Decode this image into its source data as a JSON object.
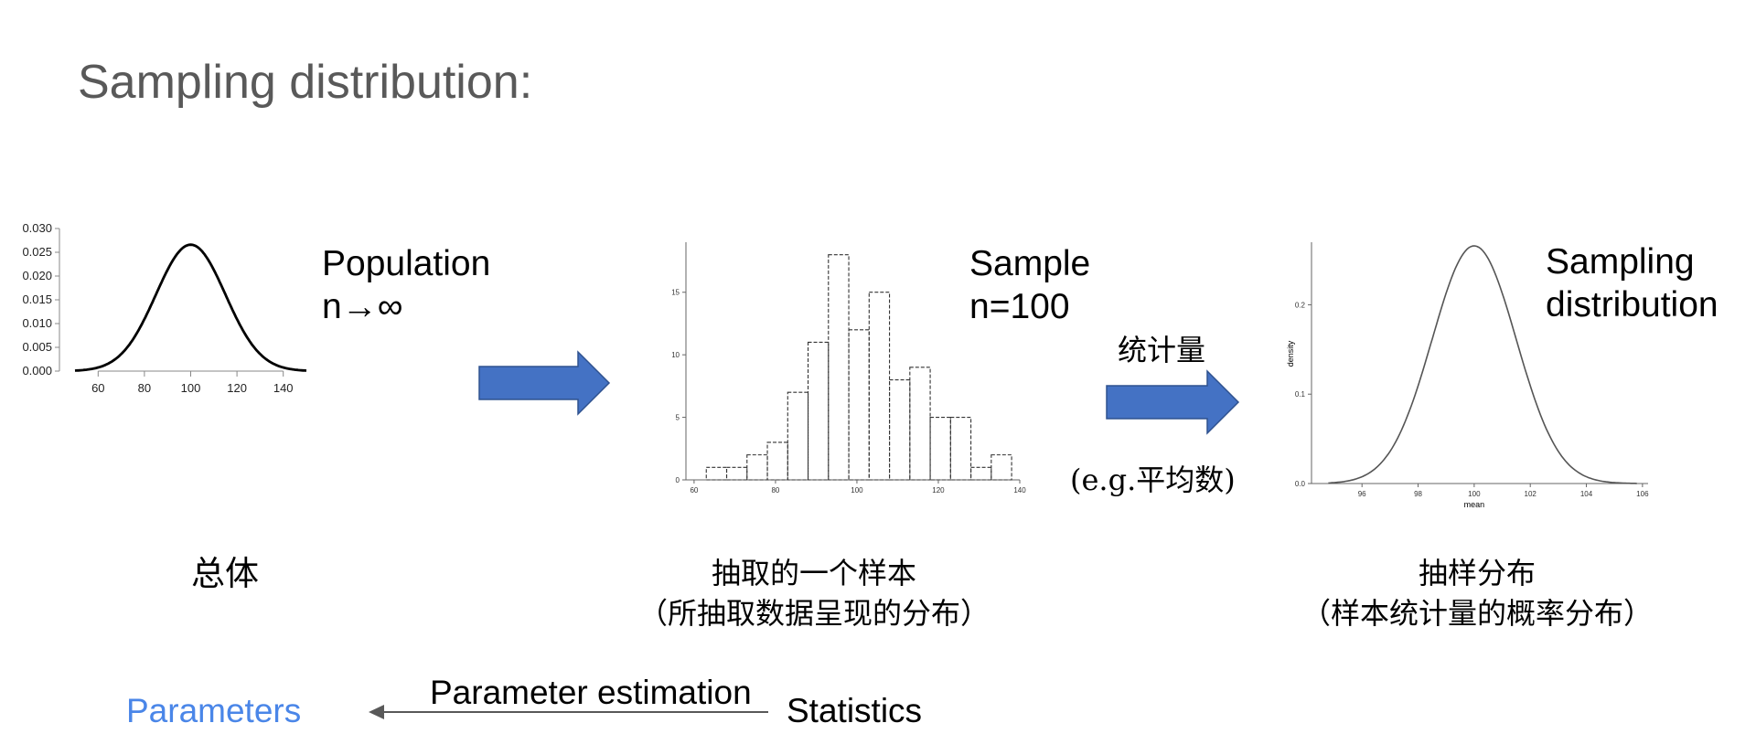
{
  "title": "Sampling distribution:",
  "population": {
    "label_line1": "Population",
    "label_line2": "n→∞",
    "caption": "总体"
  },
  "sample": {
    "label_line1": "Sample",
    "label_line2": "n=100",
    "caption_line1": "抽取的一个样本",
    "caption_line2": "（所抽取数据呈现的分布）"
  },
  "statistic": {
    "label": "统计量",
    "example": "(e.g.平均数)"
  },
  "sampling": {
    "label_line1": "Sampling",
    "label_line2": "distribution",
    "caption_line1": "抽样分布",
    "caption_line2": "（样本统计量的概率分布）"
  },
  "bottom": {
    "parameters": "Parameters",
    "estimation": "Parameter estimation",
    "statistics": "Statistics"
  },
  "colors": {
    "arrow_fill": "#4472C4",
    "arrow_stroke": "#2F528F",
    "parameters": "#4A86E8",
    "title": "#595959"
  },
  "chart_data": [
    {
      "type": "line",
      "x_ticks": [
        60,
        80,
        100,
        120,
        140
      ],
      "y_ticks": [
        "0.000",
        "0.005",
        "0.010",
        "0.015",
        "0.020",
        "0.025",
        "0.030"
      ],
      "xlim": [
        50,
        150
      ],
      "ylim": [
        0,
        0.03
      ],
      "distribution": {
        "mean": 100,
        "sd": 15
      },
      "xlabel": "",
      "ylabel": ""
    },
    {
      "type": "bar",
      "x_ticks": [
        "60",
        "80",
        "100",
        "120",
        "140"
      ],
      "y_ticks": [
        "0",
        "5",
        "10",
        "15"
      ],
      "xlim": [
        58,
        140
      ],
      "ylim": [
        0,
        19
      ],
      "bin_start": 63,
      "bin_width": 5,
      "values": [
        1,
        1,
        2,
        3,
        7,
        11,
        18,
        12,
        15,
        8,
        9,
        5,
        5,
        1,
        2
      ],
      "xlabel": "",
      "ylabel": ""
    },
    {
      "type": "line",
      "x_ticks": [
        "96",
        "98",
        "100",
        "102",
        "104",
        "106"
      ],
      "y_ticks": [
        "0.0",
        "0.1",
        "0.2"
      ],
      "xlim": [
        94.2,
        106.2
      ],
      "ylim": [
        0,
        0.27
      ],
      "distribution": {
        "mean": 100,
        "sd": 1.5
      },
      "x_range": [
        94.8,
        105.8
      ],
      "xlabel": "mean",
      "ylabel": "density"
    }
  ]
}
